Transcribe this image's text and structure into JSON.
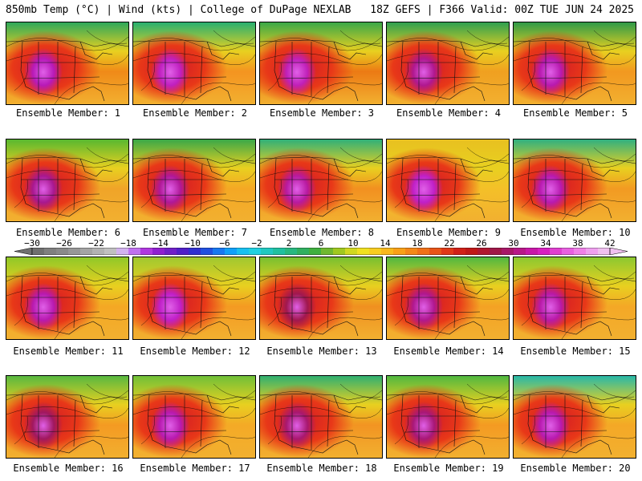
{
  "header": {
    "left": "850mb Temp (°C) | Wind (kts) | College of DuPage NEXLAB",
    "right": "18Z GEFS | F366 Valid: 00Z TUE JUN 24 2025"
  },
  "members": [
    {
      "label": "Ensemble Member: 1",
      "base": "#f08a18",
      "north": "#2ea85a",
      "core": "#b81ab8"
    },
    {
      "label": "Ensemble Member: 2",
      "base": "#f49420",
      "north": "#28b070",
      "core": "#c020c0"
    },
    {
      "label": "Ensemble Member: 3",
      "base": "#ec7a14",
      "north": "#3aa848",
      "core": "#c020b8"
    },
    {
      "label": "Ensemble Member: 4",
      "base": "#f0a020",
      "north": "#2fa050",
      "core": "#b01890"
    },
    {
      "label": "Ensemble Member: 5",
      "base": "#f29820",
      "north": "#2f9a48",
      "core": "#b81ab0"
    },
    {
      "label": "Ensemble Member: 6",
      "base": "#f0a428",
      "north": "#58b830",
      "core": "#a81890"
    },
    {
      "label": "Ensemble Member: 7",
      "base": "#f4a824",
      "north": "#3aa848",
      "core": "#b01898"
    },
    {
      "label": "Ensemble Member: 8",
      "base": "#f29020",
      "north": "#30b078",
      "core": "#b81aa0"
    },
    {
      "label": "Ensemble Member: 9",
      "base": "#f4c028",
      "north": "#e8c020",
      "core": "#c020c8"
    },
    {
      "label": "Ensemble Member: 10",
      "base": "#f29a22",
      "north": "#30b080",
      "core": "#b81ab0"
    },
    {
      "label": "Ensemble Member: 11",
      "base": "#f4a824",
      "north": "#90c828",
      "core": "#b81ab0"
    },
    {
      "label": "Ensemble Member: 12",
      "base": "#f49a22",
      "north": "#a0c830",
      "core": "#c020c8"
    },
    {
      "label": "Ensemble Member: 13",
      "base": "#f09020",
      "north": "#78c030",
      "core": "#a01850"
    },
    {
      "label": "Ensemble Member: 14",
      "base": "#f4a224",
      "north": "#50b840",
      "core": "#b01890"
    },
    {
      "label": "Ensemble Member: 15",
      "base": "#f4a826",
      "north": "#8cc830",
      "core": "#b81aa8"
    },
    {
      "label": "Ensemble Member: 16",
      "base": "#f49a22",
      "north": "#58b840",
      "core": "#a01860"
    },
    {
      "label": "Ensemble Member: 17",
      "base": "#f4aa26",
      "north": "#70c038",
      "core": "#b81ab0"
    },
    {
      "label": "Ensemble Member: 18",
      "base": "#f29422",
      "north": "#30b070",
      "core": "#a81870"
    },
    {
      "label": "Ensemble Member: 19",
      "base": "#f49a22",
      "north": "#50b840",
      "core": "#a81878"
    },
    {
      "label": "Ensemble Member: 20",
      "base": "#f4a826",
      "north": "#28b8a8",
      "core": "#b81ab0"
    }
  ],
  "colorbar": {
    "labels": [
      "−30",
      "−26",
      "−22",
      "−18",
      "−14",
      "−10",
      "−6",
      "−2",
      "2",
      "6",
      "10",
      "14",
      "18",
      "22",
      "26",
      "30",
      "34",
      "38",
      "42"
    ],
    "colors": [
      "#707070",
      "#808080",
      "#8a8a8a",
      "#979797",
      "#a4a4a4",
      "#b2b2b2",
      "#c0c0c0",
      "#d2b2ee",
      "#c070f0",
      "#b038e0",
      "#9020d0",
      "#7020c8",
      "#5020c8",
      "#3030d0",
      "#2050e0",
      "#1878f0",
      "#10a0f8",
      "#18c0f0",
      "#20d0e0",
      "#20c8c0",
      "#20c0a0",
      "#28b880",
      "#30b060",
      "#40b040",
      "#70b830",
      "#a0c820",
      "#d0d820",
      "#f0e020",
      "#f8cc20",
      "#f8b81c",
      "#f8a018",
      "#f48818",
      "#f07018",
      "#e85418",
      "#e03818",
      "#d02018",
      "#c01818",
      "#b01830",
      "#a01848",
      "#a81868",
      "#b81888",
      "#c818a8",
      "#d820c0",
      "#e040d0",
      "#e860e0",
      "#f080e8",
      "#f0a0f0",
      "#f0c0f0"
    ]
  }
}
